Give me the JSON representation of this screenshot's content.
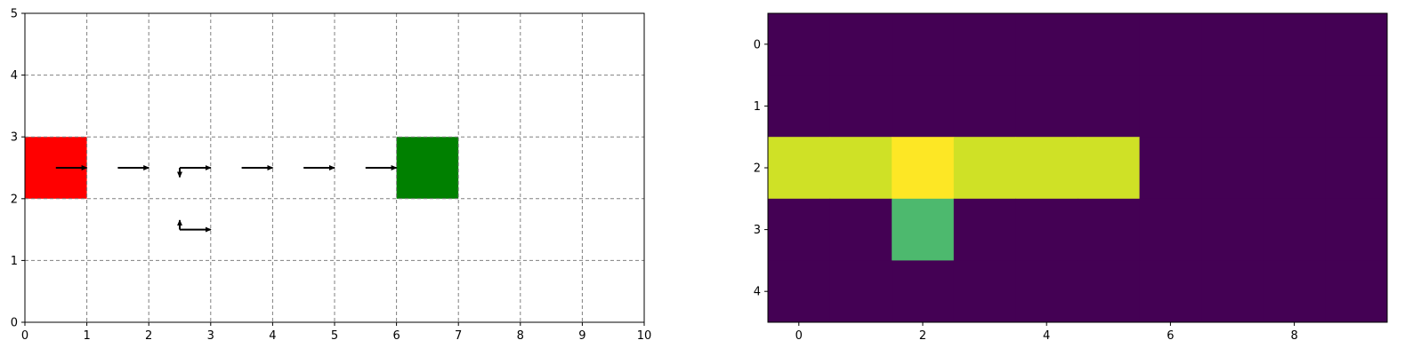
{
  "chart_data": [
    {
      "type": "gridworld",
      "xlim": [
        0,
        10
      ],
      "ylim": [
        0,
        5
      ],
      "xticks": [
        "0",
        "1",
        "2",
        "3",
        "4",
        "5",
        "6",
        "7",
        "8",
        "9",
        "10"
      ],
      "yticks": [
        "0",
        "1",
        "2",
        "3",
        "4",
        "5"
      ],
      "grid": "dashed",
      "start_cell": {
        "x": 0,
        "y": 2,
        "color": "#ff0000"
      },
      "goal_cell": {
        "x": 6,
        "y": 2,
        "color": "#008000"
      },
      "arrows": [
        {
          "x": 0.5,
          "y": 2.5,
          "dx": 0.5,
          "dy": 0
        },
        {
          "x": 1.5,
          "y": 2.5,
          "dx": 0.5,
          "dy": 0
        },
        {
          "x": 2.5,
          "y": 2.5,
          "dx": 0.5,
          "dy": 0
        },
        {
          "x": 2.5,
          "y": 2.5,
          "dx": 0,
          "dy": -0.15
        },
        {
          "x": 3.5,
          "y": 2.5,
          "dx": 0.5,
          "dy": 0
        },
        {
          "x": 4.5,
          "y": 2.5,
          "dx": 0.5,
          "dy": 0
        },
        {
          "x": 5.5,
          "y": 2.5,
          "dx": 0.5,
          "dy": 0
        },
        {
          "x": 2.5,
          "y": 1.5,
          "dx": 0.5,
          "dy": 0
        },
        {
          "x": 2.5,
          "y": 1.5,
          "dx": 0,
          "dy": 0.15
        }
      ]
    },
    {
      "type": "heatmap",
      "colormap": "viridis",
      "rows": 5,
      "cols": 10,
      "xticks": [
        "0",
        "2",
        "4",
        "6",
        "8"
      ],
      "yticks": [
        "0",
        "1",
        "2",
        "3",
        "4"
      ],
      "values": [
        [
          0,
          0,
          0,
          0,
          0,
          0,
          0,
          0,
          0,
          0
        ],
        [
          0,
          0,
          0,
          0,
          0,
          0,
          0,
          0,
          0,
          0
        ],
        [
          0.93,
          0.93,
          1.0,
          0.93,
          0.93,
          0.93,
          0,
          0,
          0,
          0
        ],
        [
          0,
          0,
          0.68,
          0,
          0,
          0,
          0,
          0,
          0,
          0
        ],
        [
          0,
          0,
          0,
          0,
          0,
          0,
          0,
          0,
          0,
          0
        ]
      ]
    }
  ]
}
